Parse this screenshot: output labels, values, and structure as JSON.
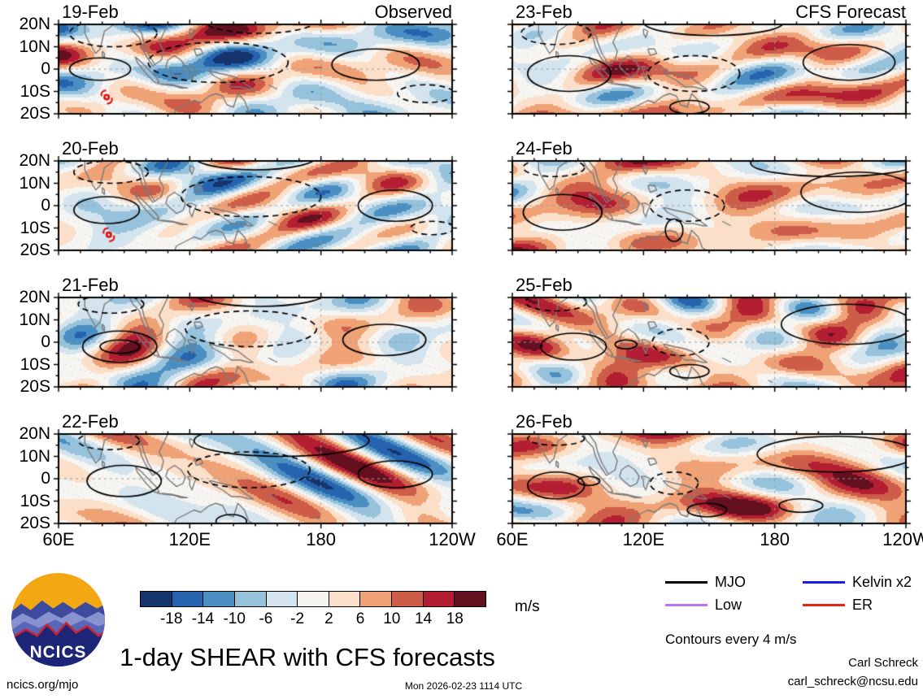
{
  "chart_data": {
    "type": "heatmap",
    "title": "1-day SHEAR with CFS forecasts",
    "columns": [
      {
        "heading": "Observed"
      },
      {
        "heading": "CFS Forecast"
      }
    ],
    "x_ticks": [
      "60E",
      "120E",
      "180",
      "120W"
    ],
    "y_ticks": [
      "20N",
      "10N",
      "0",
      "10S",
      "20S"
    ],
    "lon_range": [
      60,
      240
    ],
    "lat_range": [
      -20,
      20
    ],
    "colorbar": {
      "levels": [
        -18,
        -14,
        -10,
        -6,
        -2,
        2,
        6,
        10,
        14,
        18
      ],
      "colors": [
        "#15356e",
        "#2563ae",
        "#4a8ec2",
        "#97c2dc",
        "#d4e4ee",
        "#f6f5f2",
        "#fbdfc9",
        "#f0a277",
        "#cd5c49",
        "#b41e32",
        "#64101f"
      ],
      "label": "m/s"
    },
    "legend": [
      {
        "label": "MJO",
        "color": "#000000"
      },
      {
        "label": "Kelvin x2",
        "color": "#1a1af0"
      },
      {
        "label": "Low",
        "color": "#b873f0"
      },
      {
        "label": "ER",
        "color": "#eb2314"
      }
    ],
    "contour_note": "Contours every 4 m/s",
    "panels": [
      {
        "date": "19-Feb",
        "heading": "Observed",
        "seed": 11,
        "bias": 0,
        "cyclone": {
          "lon": 82,
          "lat": -12.5
        },
        "contours": [
          [
            79,
            0,
            14,
            5,
            "s"
          ],
          [
            205,
            2,
            20,
            7,
            "s"
          ],
          [
            133,
            3,
            32,
            9,
            "d"
          ],
          [
            85,
            16,
            20,
            6,
            "d"
          ],
          [
            228,
            -11,
            13,
            4,
            "d"
          ],
          [
            152,
            22,
            26,
            6,
            "d"
          ]
        ]
      },
      {
        "date": "20-Feb",
        "seed": 23,
        "bias": 0,
        "cyclone": {
          "lon": 83,
          "lat": -13
        },
        "contours": [
          [
            82,
            -2,
            15,
            6,
            "s"
          ],
          [
            214,
            0,
            17,
            7,
            "s"
          ],
          [
            148,
            4,
            32,
            9,
            "d"
          ],
          [
            84,
            15,
            17,
            5,
            "d"
          ],
          [
            231,
            -10,
            10,
            3,
            "d"
          ],
          [
            150,
            22,
            28,
            6,
            "s"
          ]
        ]
      },
      {
        "date": "21-Feb",
        "seed": 37,
        "bias": 1,
        "contours": [
          [
            88,
            -2,
            17,
            7,
            "s"
          ],
          [
            88,
            -2,
            9,
            3,
            "s"
          ],
          [
            209,
            1,
            19,
            7,
            "s"
          ],
          [
            148,
            6,
            30,
            8,
            "d"
          ],
          [
            84,
            17,
            15,
            4,
            "d"
          ],
          [
            152,
            22,
            30,
            6,
            "s"
          ]
        ]
      },
      {
        "date": "22-Feb",
        "seed": 49,
        "bias": 1,
        "contours": [
          [
            90,
            -1,
            17,
            7,
            "s"
          ],
          [
            214,
            2,
            17,
            6,
            "s"
          ],
          [
            139,
            -19,
            7,
            3,
            "s"
          ],
          [
            147,
            4,
            28,
            8,
            "d"
          ],
          [
            83,
            17,
            14,
            4,
            "d"
          ],
          [
            162,
            17,
            40,
            7,
            "s"
          ]
        ]
      },
      {
        "date": "23-Feb",
        "heading": "CFS Forecast",
        "seed": 53,
        "bias": 3,
        "contours": [
          [
            86,
            -2,
            19,
            8,
            "s"
          ],
          [
            214,
            3,
            21,
            8,
            "s"
          ],
          [
            141,
            -17,
            9,
            3,
            "s"
          ],
          [
            143,
            -2,
            21,
            8,
            "d"
          ],
          [
            80,
            16,
            16,
            5,
            "d"
          ],
          [
            152,
            21,
            32,
            6,
            "s"
          ]
        ]
      },
      {
        "date": "24-Feb",
        "seed": 67,
        "bias": 4,
        "contours": [
          [
            83,
            -3,
            18,
            8,
            "s"
          ],
          [
            218,
            6,
            26,
            9,
            "s"
          ],
          [
            134,
            -11,
            4,
            5,
            "s"
          ],
          [
            140,
            0,
            17,
            7,
            "d"
          ],
          [
            79,
            17,
            14,
            4,
            "d"
          ],
          [
            207,
            19,
            38,
            6,
            "s"
          ]
        ]
      },
      {
        "date": "25-Feb",
        "seed": 79,
        "bias": 4.5,
        "contours": [
          [
            88,
            -2,
            15,
            6,
            "s"
          ],
          [
            112,
            -1,
            5,
            2,
            "s"
          ],
          [
            213,
            8,
            30,
            9,
            "s"
          ],
          [
            141,
            -13,
            9,
            3,
            "s"
          ],
          [
            137,
            0,
            13,
            6,
            "d"
          ],
          [
            80,
            18,
            14,
            4,
            "d"
          ]
        ]
      },
      {
        "date": "26-Feb",
        "seed": 91,
        "bias": 5,
        "contours": [
          [
            80,
            -3,
            13,
            6,
            "s"
          ],
          [
            95,
            -1,
            5,
            2,
            "s"
          ],
          [
            208,
            11,
            36,
            8,
            "s"
          ],
          [
            149,
            -14,
            9,
            3,
            "s"
          ],
          [
            134,
            -2,
            11,
            5,
            "d"
          ],
          [
            80,
            18,
            13,
            3,
            "d"
          ],
          [
            192,
            -12,
            10,
            3,
            "s"
          ]
        ]
      }
    ]
  },
  "footer": {
    "site": "ncics.org/mjo",
    "timestamp": "Mon 2026-02-23 1114 UTC",
    "credit_name": "Carl Schreck",
    "credit_email": "carl_schreck@ncsu.edu",
    "logo_text": "NCICS"
  }
}
